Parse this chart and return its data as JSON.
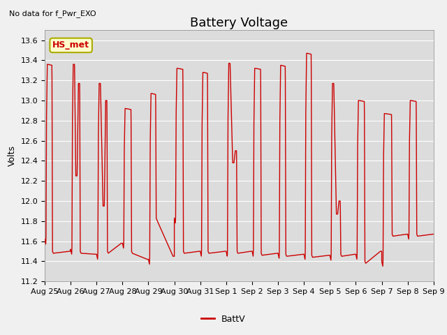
{
  "title": "Battery Voltage",
  "ylabel": "Volts",
  "annotation": "No data for f_Pwr_EXO",
  "legend_label": "BattV",
  "legend_line_label": "HS_met",
  "ylim": [
    11.2,
    13.7
  ],
  "yticks": [
    11.2,
    11.4,
    11.6,
    11.8,
    12.0,
    12.2,
    12.4,
    12.6,
    12.8,
    13.0,
    13.2,
    13.4,
    13.6
  ],
  "xtick_labels": [
    "Aug 25",
    "Aug 26",
    "Aug 27",
    "Aug 28",
    "Aug 29",
    "Aug 30",
    "Aug 31",
    "Sep 1",
    "Sep 2",
    "Sep 3",
    "Sep 4",
    "Sep 5",
    "Sep 6",
    "Sep 7",
    "Sep 8",
    "Sep 9"
  ],
  "line_color": "#cc0000",
  "legend_box_facecolor": "#ffffcc",
  "legend_box_edgecolor": "#aaaa00",
  "plot_bg_color": "#dcdcdc",
  "fig_bg_color": "#f0f0f0",
  "title_fontsize": 13,
  "axis_label_fontsize": 9,
  "tick_fontsize": 8,
  "annotation_fontsize": 8,
  "line_width": 1.0
}
